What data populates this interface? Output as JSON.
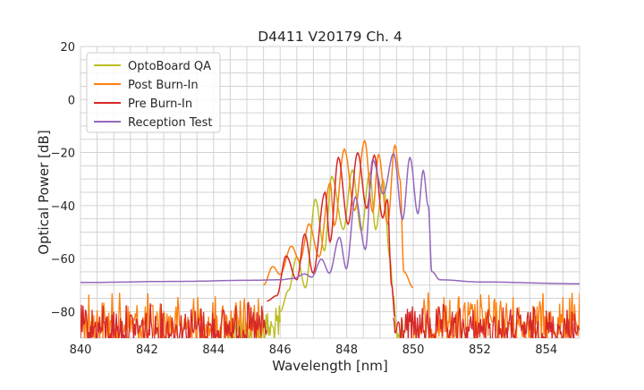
{
  "chart_data": {
    "type": "line",
    "title": "D4411 V20179 Ch. 4",
    "xlabel": "Wavelength [nm]",
    "ylabel": "Optical Power [dB]",
    "xlim": [
      840,
      855
    ],
    "ylim": [
      -90,
      20
    ],
    "xticks": [
      840,
      842,
      844,
      846,
      848,
      850,
      852,
      854
    ],
    "yticks": [
      20,
      0,
      -20,
      -40,
      -60,
      -80
    ],
    "ytick_labels": [
      "20",
      "0",
      "−20",
      "−40",
      "−60",
      "−80"
    ],
    "grid": true,
    "grid_minor_x": 0.5,
    "grid_minor_y": 5,
    "legend_position": "top-left",
    "series": [
      {
        "name": "OptoBoard QA",
        "color": "#bcbd22",
        "points": [
          [
            846.0,
            -80
          ],
          [
            846.25,
            -72
          ],
          [
            846.5,
            -59.3
          ],
          [
            846.76,
            -71
          ],
          [
            847.06,
            -37.6
          ],
          [
            847.33,
            -57
          ],
          [
            847.55,
            -29.1
          ],
          [
            847.9,
            -49
          ],
          [
            848.17,
            -26.6
          ],
          [
            848.44,
            -49.6
          ],
          [
            848.69,
            -27.7
          ],
          [
            848.87,
            -49
          ],
          [
            849.1,
            -30.5
          ],
          [
            849.3,
            -60
          ],
          [
            849.4,
            -74
          ],
          [
            849.5,
            -88
          ]
        ],
        "noise": [
          [
            844.4,
            846.0,
            -77,
            -90
          ],
          [
            849.45,
            849.7,
            -82,
            -90
          ]
        ]
      },
      {
        "name": "Post Burn-In",
        "color": "#ff7f0e",
        "points": [
          [
            845.5,
            -70
          ],
          [
            845.78,
            -63
          ],
          [
            846.0,
            -66
          ],
          [
            846.34,
            -55.3
          ],
          [
            846.59,
            -61
          ],
          [
            846.87,
            -46.9
          ],
          [
            847.17,
            -59.3
          ],
          [
            847.5,
            -31.4
          ],
          [
            847.63,
            -47.5
          ],
          [
            847.93,
            -18.7
          ],
          [
            848.24,
            -41.8
          ],
          [
            848.54,
            -15.6
          ],
          [
            848.78,
            -42.4
          ],
          [
            848.96,
            -20.8
          ],
          [
            849.23,
            -46.9
          ],
          [
            849.45,
            -17.3
          ],
          [
            849.6,
            -30
          ],
          [
            849.72,
            -65
          ],
          [
            850.0,
            -71
          ]
        ],
        "noise": [
          [
            840.0,
            845.5,
            -72,
            -90
          ],
          [
            850.0,
            855.0,
            -72,
            -90
          ]
        ]
      },
      {
        "name": "Pre Burn-In",
        "color": "#d62728",
        "points": [
          [
            845.6,
            -76
          ],
          [
            845.9,
            -74
          ],
          [
            846.18,
            -59
          ],
          [
            846.5,
            -68
          ],
          [
            846.74,
            -50.8
          ],
          [
            846.99,
            -65.5
          ],
          [
            847.35,
            -35
          ],
          [
            847.5,
            -53.7
          ],
          [
            847.75,
            -21.9
          ],
          [
            848.04,
            -47
          ],
          [
            848.33,
            -20.1
          ],
          [
            848.6,
            -41
          ],
          [
            848.83,
            -21
          ],
          [
            849.08,
            -44.6
          ],
          [
            849.22,
            -37.8
          ],
          [
            849.35,
            -70
          ],
          [
            849.45,
            -82
          ]
        ],
        "noise": [
          [
            840.0,
            845.6,
            -76,
            -90
          ],
          [
            849.4,
            855.0,
            -77,
            -90
          ]
        ]
      },
      {
        "name": "Reception Test",
        "color": "#9467bd",
        "points": [
          [
            840.0,
            -69
          ],
          [
            843.0,
            -68.6
          ],
          [
            845.0,
            -68.2
          ],
          [
            846.0,
            -68
          ],
          [
            846.4,
            -67.5
          ],
          [
            846.74,
            -65.8
          ],
          [
            846.95,
            -67
          ],
          [
            847.24,
            -60.2
          ],
          [
            847.48,
            -65.5
          ],
          [
            847.78,
            -52
          ],
          [
            847.99,
            -63.8
          ],
          [
            848.26,
            -36.8
          ],
          [
            848.56,
            -56.5
          ],
          [
            848.78,
            -22.7
          ],
          [
            849.1,
            -35.6
          ],
          [
            849.41,
            -20.4
          ],
          [
            849.68,
            -45.2
          ],
          [
            849.9,
            -21.9
          ],
          [
            850.14,
            -43
          ],
          [
            850.3,
            -26.8
          ],
          [
            850.45,
            -40
          ],
          [
            850.56,
            -64.9
          ],
          [
            850.8,
            -68
          ],
          [
            852.0,
            -68.8
          ],
          [
            855.0,
            -69.5
          ]
        ],
        "noise": []
      }
    ]
  }
}
